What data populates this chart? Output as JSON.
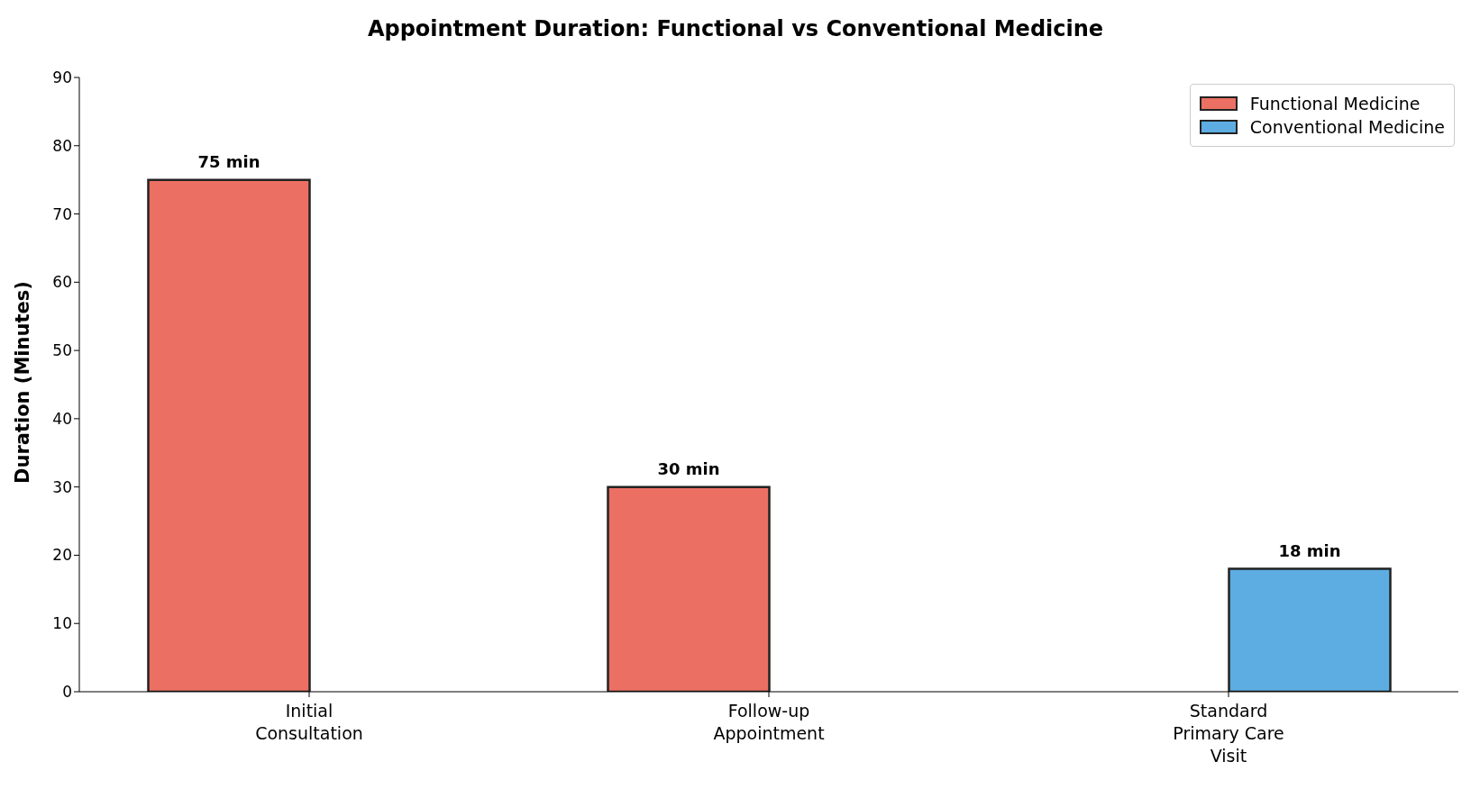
{
  "chart_data": {
    "type": "bar",
    "title": "Appointment Duration: Functional vs Conventional Medicine",
    "ylabel": "Duration (Minutes)",
    "categories": [
      "Initial\nConsultation",
      "Follow-up\nAppointment",
      "Standard\nPrimary Care\nVisit"
    ],
    "series": [
      {
        "name": "Functional Medicine",
        "color": "#eb7063",
        "values": [
          75,
          30,
          0
        ],
        "value_labels": [
          "75 min",
          "30 min",
          null
        ]
      },
      {
        "name": "Conventional Medicine",
        "color": "#5dade2",
        "values": [
          0,
          0,
          18
        ],
        "value_labels": [
          null,
          null,
          "18 min"
        ]
      }
    ],
    "ylim": [
      0,
      90
    ],
    "yticks": [
      0,
      10,
      20,
      30,
      40,
      50,
      60,
      70,
      80,
      90
    ],
    "grid": false,
    "legend": "top right"
  }
}
